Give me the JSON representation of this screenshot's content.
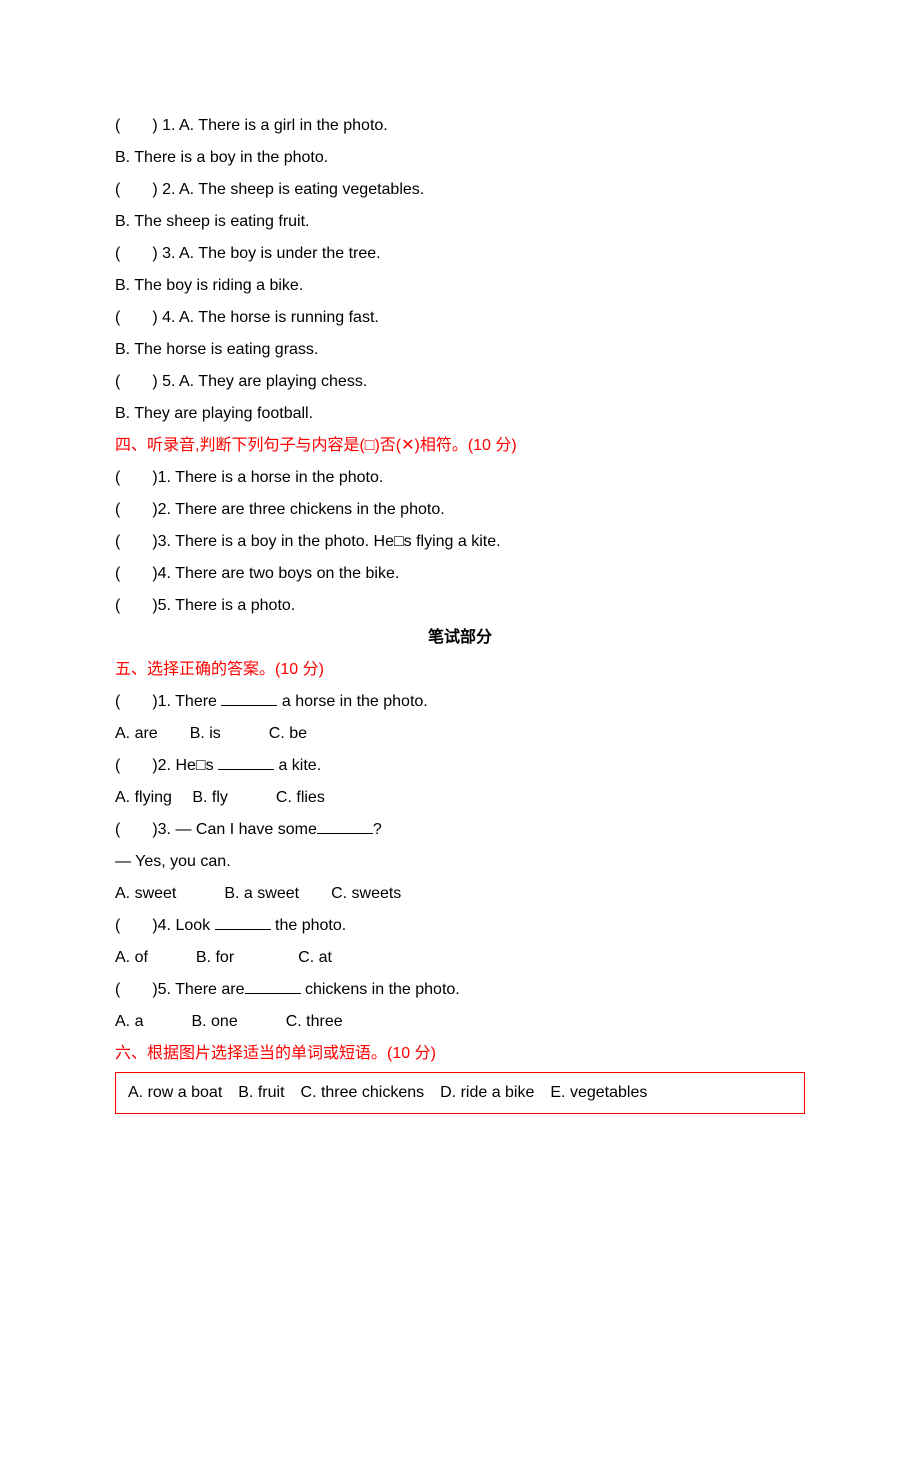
{
  "section3": {
    "q1": {
      "prefix": "(　　) 1. A. ",
      "a": "There is a girl in the photo.",
      "b_prefix": "B. ",
      "b": "There is a boy in the photo."
    },
    "q2": {
      "prefix": "(　　) 2. A. ",
      "a": "The sheep is eating vegetables.",
      "b_prefix": "B. ",
      "b": "The sheep is eating fruit."
    },
    "q3": {
      "prefix": "(　　) 3. A. ",
      "a": "The boy is under the tree.",
      "b_prefix": "B. ",
      "b": "The boy is riding a bike."
    },
    "q4": {
      "prefix": "(　　) 4. A. ",
      "a": "The horse is running fast.",
      "b_prefix": "B. ",
      "b": "The horse is eating grass."
    },
    "q5": {
      "prefix": "(　　) 5. A. ",
      "a": "They are playing chess.",
      "b_prefix": "B. ",
      "b": "They are playing football."
    }
  },
  "section4": {
    "header": "四、听录音,判断下列句子与内容是(□)否(✕)相符。(10 分)",
    "q1": {
      "prefix": "(　　)1. ",
      "text": "There is a horse in the photo."
    },
    "q2": {
      "prefix": "(　　)2. ",
      "text": "There are three chickens in the photo."
    },
    "q3": {
      "prefix": "(　　)3. ",
      "text": "There is a boy in the photo. He□s flying a kite."
    },
    "q4": {
      "prefix": "(　　)4. ",
      "text": "There are two boys on the bike."
    },
    "q5": {
      "prefix": "(　　)5. ",
      "text": "There is a photo."
    }
  },
  "written_section_title": "笔试部分",
  "section5": {
    "header": "五、选择正确的答案。(10 分)",
    "q1": {
      "prefix": "(　　)1. There ",
      "suffix": " a horse in the photo.",
      "options": "A. are　　B. is　　　C. be"
    },
    "q2": {
      "prefix": "(　　)2. He□s ",
      "suffix": " a kite.",
      "options": "A. flying　 B. fly　　　C. flies"
    },
    "q3": {
      "prefix": "(　　)3. — Can I have some",
      "suffix": "?",
      "line2": "— Yes, you can.",
      "options": "A. sweet　　　B. a sweet　　C. sweets"
    },
    "q4": {
      "prefix": "(　　)4. Look ",
      "suffix": " the photo.",
      "options": "A. of　　　B. for　　　　C. at"
    },
    "q5": {
      "prefix": "(　　)5. There are",
      "suffix": " chickens in the photo.",
      "options": "A. a　　　B. one　　　C. three"
    }
  },
  "section6": {
    "header": "六、根据图片选择适当的单词或短语。(10 分)",
    "word_box": "A. row a boat　B. fruit　C. three chickens　D. ride a bike　E. vegetables"
  }
}
